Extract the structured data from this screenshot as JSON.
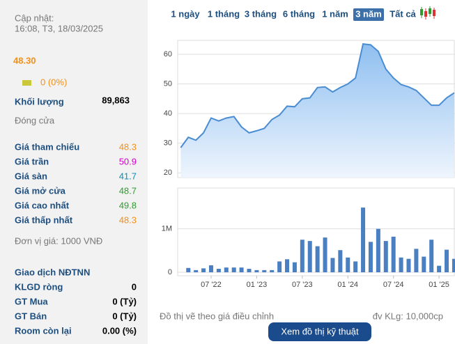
{
  "panel": {
    "updated_label": "Cập nhật:",
    "updated_time": "16:08, T3, 18/03/2025",
    "price": "48.30",
    "change": "0 (0%)",
    "volume_label": "Khối lượng",
    "volume": "89,863",
    "status": "Đóng cửa",
    "prices": [
      {
        "label": "Giá tham chiếu",
        "value": "48.3",
        "color": "#f39019"
      },
      {
        "label": "Giá trần",
        "value": "50.9",
        "color": "#d100c8"
      },
      {
        "label": "Giá sàn",
        "value": "41.7",
        "color": "#0d8fb3"
      },
      {
        "label": "Giá mở cửa",
        "value": "48.7",
        "color": "#2e9c2e"
      },
      {
        "label": "Giá cao nhất",
        "value": "49.8",
        "color": "#2e9c2e"
      },
      {
        "label": "Giá thấp nhất",
        "value": "48.3",
        "color": "#f39019"
      }
    ],
    "unit_note": "Đơn vị giá: 1000 VNĐ",
    "foreign_title": "Giao dịch NĐTNN",
    "foreign": [
      {
        "label": "KLGD ròng",
        "value": "0"
      },
      {
        "label": "GT Mua",
        "value": "0 (Tỷ)"
      },
      {
        "label": "GT Bán",
        "value": "0 (Tỷ)"
      },
      {
        "label": "Room còn lại",
        "value": "0.00 (%)"
      }
    ]
  },
  "tabs": [
    "1 ngày",
    "1 tháng",
    "3 tháng",
    "6 tháng",
    "1 năm",
    "3 năm",
    "Tất cả"
  ],
  "active_tab": 5,
  "footer": {
    "note": "Đồ thị vẽ theo giá điều chỉnh",
    "unit": "đv KLg: 10,000cp",
    "button": "Xem đồ thị kỹ thuật"
  },
  "chart_data": [
    {
      "type": "area",
      "color": "#4a8cd2",
      "x": [
        2,
        3,
        4,
        5,
        6,
        7,
        8,
        9,
        10,
        11,
        12,
        13,
        14,
        15,
        16,
        17,
        18,
        19,
        20,
        21,
        22,
        23,
        24,
        25,
        26,
        27,
        28,
        29,
        30,
        31,
        32,
        33,
        34,
        35,
        36,
        37,
        38
      ],
      "values": [
        28.5,
        32,
        31,
        33.5,
        38.5,
        37.5,
        38.5,
        39,
        35.5,
        33.5,
        34.2,
        35,
        38,
        39.5,
        42.5,
        42.3,
        45,
        45.3,
        48.8,
        49,
        47.3,
        48.8,
        50,
        52,
        63.5,
        63.2,
        61,
        55,
        52,
        49.8,
        49,
        47.8,
        45.3,
        42.8,
        42.8,
        45.3,
        47
      ],
      "xlim": [
        1.6,
        38.1
      ],
      "ylim": [
        18.4,
        64.7
      ],
      "yticks": [
        20,
        30,
        40,
        50,
        60
      ],
      "grid": true
    },
    {
      "type": "bar",
      "color": "#4a7fc1",
      "x": [
        3,
        4,
        5,
        6,
        7,
        8,
        9,
        10,
        11,
        12,
        13,
        14,
        15,
        16,
        17,
        18,
        19,
        20,
        21,
        22,
        23,
        24,
        25,
        26,
        27,
        28,
        29,
        30,
        31,
        32,
        33,
        34,
        35,
        36,
        37,
        38
      ],
      "values": [
        100000,
        50000,
        90000,
        160000,
        80000,
        110000,
        110000,
        110000,
        80000,
        50000,
        50000,
        50000,
        250000,
        300000,
        230000,
        750000,
        720000,
        600000,
        800000,
        330000,
        510000,
        340000,
        250000,
        1490000,
        700000,
        1000000,
        720000,
        820000,
        340000,
        310000,
        540000,
        360000,
        750000,
        150000,
        520000,
        310000
      ],
      "xlim": [
        1.6,
        38.1
      ],
      "ylim": [
        -80000,
        1940000
      ],
      "yticks": [
        0,
        {
          "value": 1000000,
          "label": "1M"
        }
      ],
      "xticks": [
        {
          "value": 6,
          "label": "07 '22"
        },
        {
          "value": 12,
          "label": "01 '23"
        },
        {
          "value": 18,
          "label": "07 '23"
        },
        {
          "value": 24,
          "label": "01 '24"
        },
        {
          "value": 30,
          "label": "07 '24"
        },
        {
          "value": 36,
          "label": "01 '25"
        }
      ],
      "grid": true
    }
  ]
}
